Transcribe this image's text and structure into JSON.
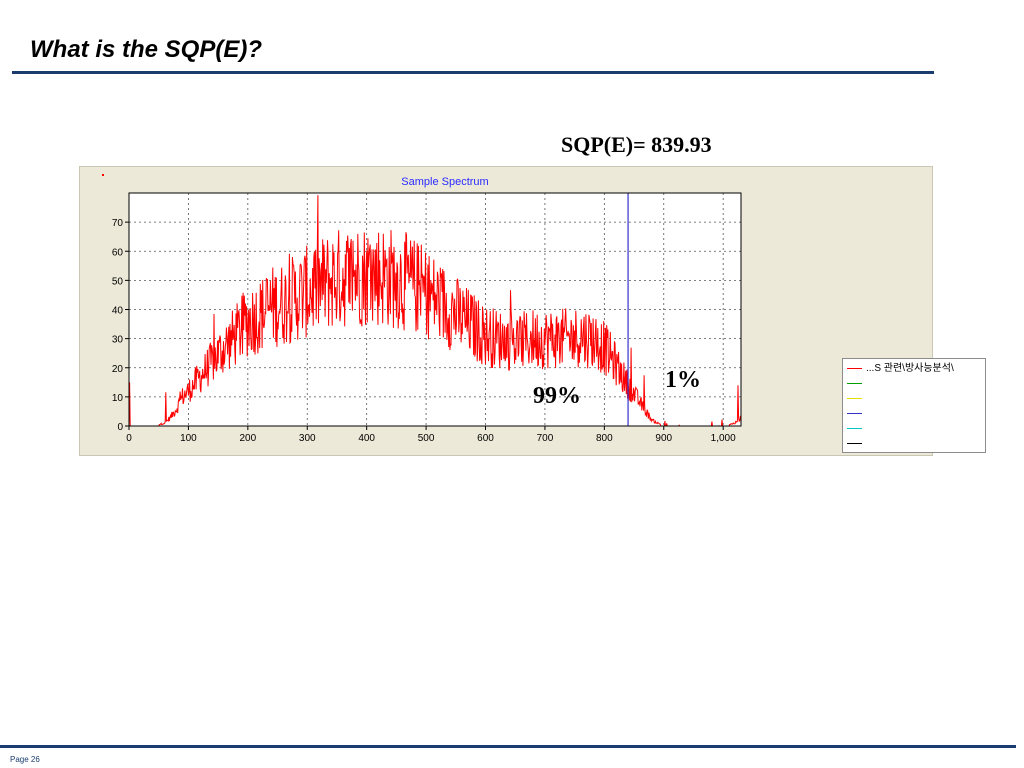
{
  "slide": {
    "title": "What is the SQP(E)?",
    "page": "Page 26"
  },
  "annotations": {
    "sqp": "SQP(E)= 839.93",
    "above_pct": "1%",
    "below_pct": "99%"
  },
  "colors": {
    "accent": "#1a3c6e",
    "series": "#ff0000",
    "marker": "#3333cc",
    "chart_bg": "#ece9d8"
  },
  "legend": {
    "entries": [
      {
        "label": "...S 관련\\방사능분석\\",
        "color": "#ff0000"
      },
      {
        "label": "",
        "color": "#00a000"
      },
      {
        "label": "",
        "color": "#e0e000"
      },
      {
        "label": "",
        "color": "#3333cc"
      },
      {
        "label": "",
        "color": "#00c8c8"
      },
      {
        "label": "",
        "color": "#000000"
      }
    ]
  },
  "chart_data": {
    "type": "line",
    "title": "Sample Spectrum",
    "xlabel": "",
    "ylabel": "",
    "xlim": [
      0,
      1030
    ],
    "ylim": [
      0,
      80
    ],
    "xticks": [
      0,
      100,
      200,
      300,
      400,
      500,
      600,
      700,
      800,
      900,
      1000
    ],
    "xtick_labels": [
      "0",
      "100",
      "200",
      "300",
      "400",
      "500",
      "600",
      "700",
      "800",
      "900",
      "1,000"
    ],
    "yticks": [
      0,
      10,
      20,
      30,
      40,
      50,
      60,
      70
    ],
    "grid": true,
    "legend_position": "right",
    "marker_x": 839.93,
    "series": [
      {
        "name": "...S 관련\\방사능분석\\",
        "x": [
          0,
          20,
          40,
          60,
          70,
          80,
          90,
          100,
          120,
          140,
          160,
          180,
          200,
          220,
          240,
          260,
          280,
          300,
          320,
          340,
          360,
          380,
          400,
          420,
          440,
          460,
          480,
          500,
          520,
          540,
          560,
          580,
          600,
          620,
          640,
          660,
          680,
          700,
          720,
          740,
          760,
          780,
          800,
          820,
          840,
          860,
          880,
          900,
          1000,
          1020,
          1030
        ],
        "y": [
          0,
          0,
          0,
          1,
          3,
          6,
          10,
          12,
          17,
          22,
          27,
          31,
          36,
          38,
          41,
          42,
          44,
          46,
          48,
          50,
          51,
          52,
          52,
          52,
          51,
          50,
          48,
          46,
          43,
          40,
          37,
          34,
          31,
          30,
          29,
          29,
          30,
          30,
          30,
          30,
          31,
          30,
          27,
          21,
          14,
          8,
          2,
          0,
          0,
          1,
          3
        ]
      }
    ]
  }
}
